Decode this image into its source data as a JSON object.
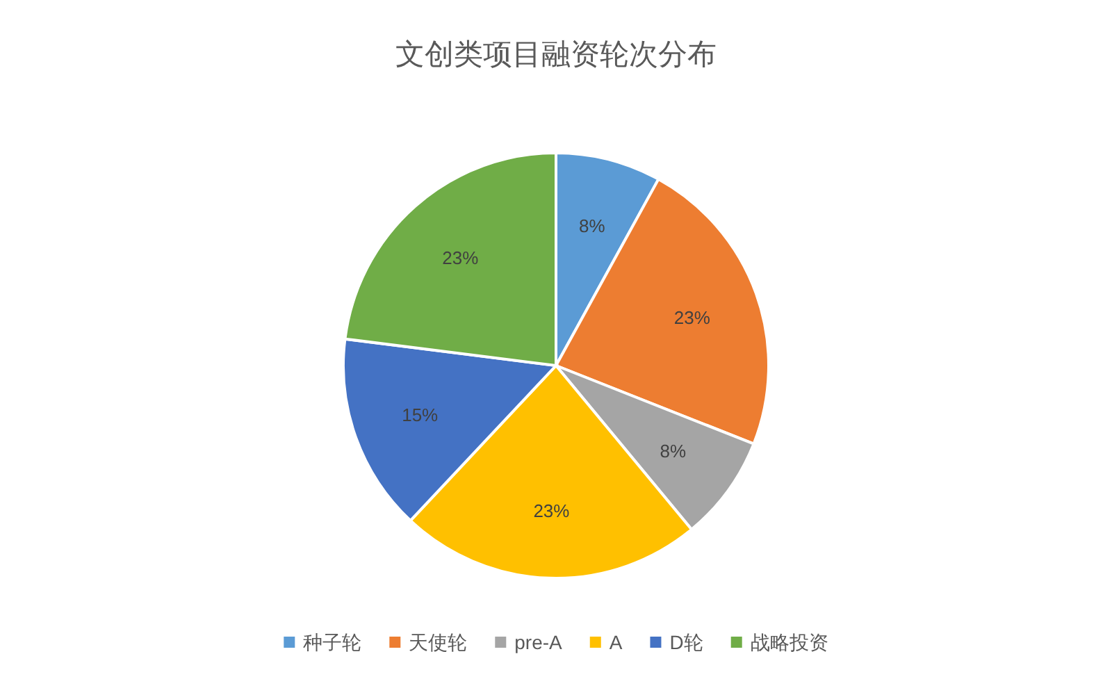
{
  "chart_data": {
    "type": "pie",
    "title": "文创类项目融资轮次分布",
    "categories": [
      "种子轮",
      "天使轮",
      "pre-A",
      "A",
      "D轮",
      "战略投资"
    ],
    "values": [
      8,
      23,
      8,
      23,
      15,
      23
    ],
    "colors": [
      "#5b9bd5",
      "#ed7d31",
      "#a5a5a5",
      "#ffc000",
      "#4472c4",
      "#70ad47"
    ],
    "value_labels": [
      "8%",
      "23%",
      "8%",
      "23%",
      "15%",
      "23%"
    ],
    "legend": "bottom"
  }
}
